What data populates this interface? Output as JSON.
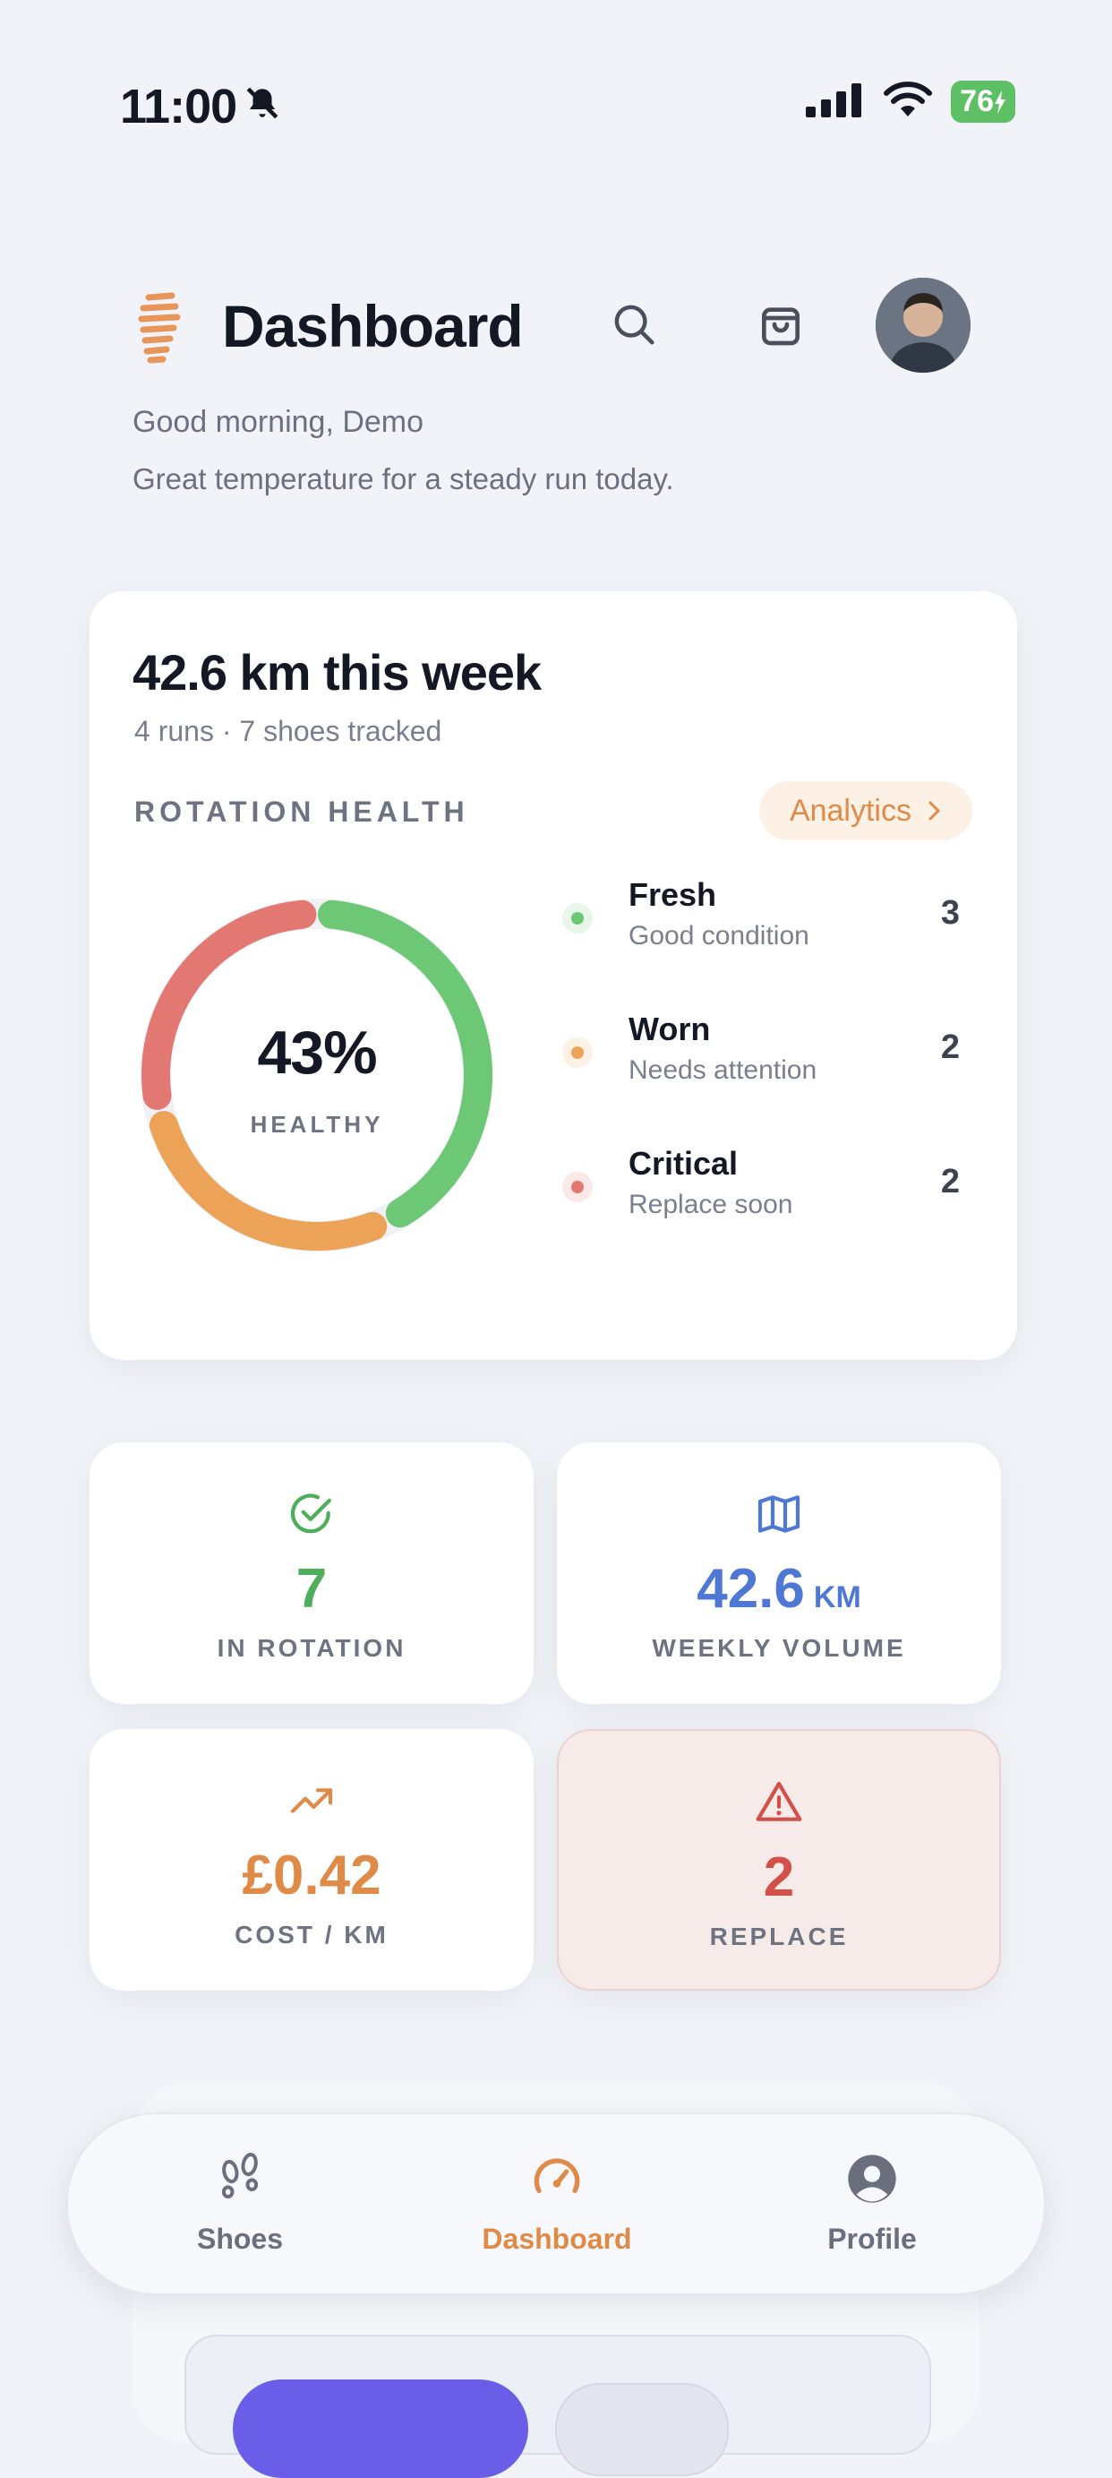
{
  "status_bar": {
    "time": "11:00",
    "battery": "76"
  },
  "header": {
    "title": "Dashboard",
    "greeting": "Good morning, Demo",
    "subtitle": "Great temperature for a steady run today."
  },
  "summary": {
    "headline": "42.6 km this week",
    "subline": "4 runs · 7 shoes tracked",
    "section_label": "ROTATION HEALTH",
    "analytics_label": "Analytics"
  },
  "rotation_health": {
    "percent_label": "43%",
    "percent_value": 43,
    "caption": "HEALTHY",
    "segments": [
      {
        "name": "Fresh",
        "description": "Good condition",
        "count": "3",
        "value": 3,
        "color": "#6cc874"
      },
      {
        "name": "Worn",
        "description": "Needs attention",
        "count": "2",
        "value": 2,
        "color": "#eca257"
      },
      {
        "name": "Critical",
        "description": "Replace soon",
        "count": "2",
        "value": 2,
        "color": "#e37873"
      }
    ]
  },
  "stats": [
    {
      "value": "7",
      "unit": "",
      "label": "IN ROTATION",
      "icon": "check-circle-icon",
      "color": "#4fae5c"
    },
    {
      "value": "42.6",
      "unit": "KM",
      "label": "WEEKLY VOLUME",
      "icon": "map-icon",
      "color": "#4e78d4"
    },
    {
      "value": "£0.42",
      "unit": "",
      "label": "COST / KM",
      "icon": "trending-up-icon",
      "color": "#e08a47"
    },
    {
      "value": "2",
      "unit": "",
      "label": "REPLACE",
      "icon": "warning-icon",
      "color": "#d34f49"
    }
  ],
  "nav": {
    "items": [
      {
        "label": "Shoes",
        "icon": "footprints-icon"
      },
      {
        "label": "Dashboard",
        "icon": "speedometer-icon",
        "active": true
      },
      {
        "label": "Profile",
        "icon": "user-circle-icon"
      }
    ]
  },
  "colors": {
    "accent": "#e08a47",
    "background": "#f1f3f8",
    "primary_button": "#6a5de8"
  }
}
